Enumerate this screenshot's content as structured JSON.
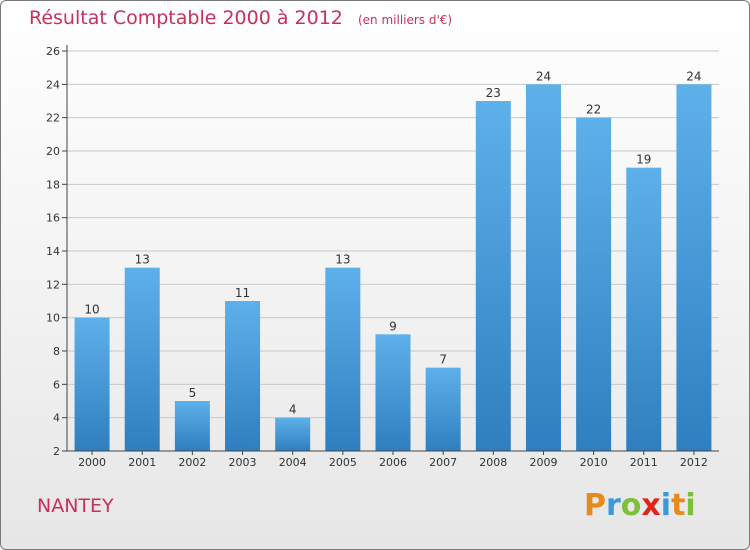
{
  "header": {
    "title": "Résultat Comptable 2000 à 2012",
    "unit": "(en milliers d'€)"
  },
  "commune": "NANTEY",
  "logo": {
    "text": "Proxiti",
    "letter_colors": [
      "#e8891c",
      "#3a9ad9",
      "#7cbf3c",
      "#e2231a",
      "#3a9ad9",
      "#e8891c",
      "#7cbf3c"
    ]
  },
  "colors": {
    "bar_light": "#5eb0ea",
    "bar_dark": "#2f7fc0",
    "axis": "#444444",
    "grid": "#c8c8c8"
  },
  "chart_data": {
    "type": "bar",
    "title": "Résultat Comptable 2000 à 2012",
    "subtitle": "(en milliers d'€)",
    "xlabel": "",
    "ylabel": "",
    "categories": [
      "2000",
      "2001",
      "2002",
      "2003",
      "2004",
      "2005",
      "2006",
      "2007",
      "2008",
      "2009",
      "2010",
      "2011",
      "2012"
    ],
    "values": [
      10,
      13,
      5,
      11,
      4,
      13,
      9,
      7,
      23,
      24,
      22,
      19,
      24
    ],
    "ylim": [
      2,
      26
    ],
    "yticks": [
      2,
      4,
      6,
      8,
      10,
      12,
      14,
      16,
      18,
      20,
      22,
      24,
      26
    ],
    "grid": true
  }
}
